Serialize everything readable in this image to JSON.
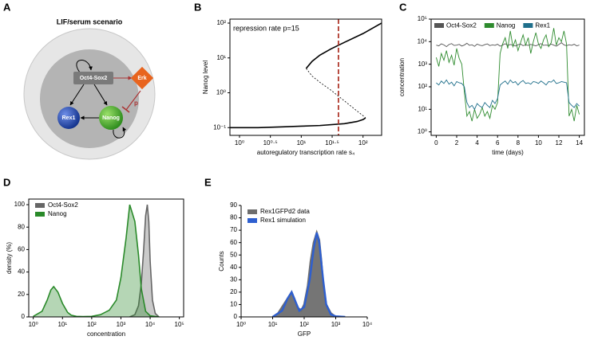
{
  "diagram": {
    "panel": "A",
    "title": "LIF/serum scenario",
    "nodes": [
      "Oct4-Sox2",
      "Erk",
      "Rex1",
      "Nanog"
    ],
    "edge_label": "p"
  },
  "chart_data": [
    {
      "panel": "B",
      "type": "line",
      "annotation": "repression rate p=15",
      "xlabel": "autoregulatory transcription rate s₄",
      "ylabel": "Nanog level",
      "xscale": "log",
      "yscale": "log",
      "xlim": [
        0.7,
        200
      ],
      "ylim": [
        0.06,
        130
      ],
      "frame": true,
      "xticks": [
        {
          "value": 1,
          "label": "10⁰"
        },
        {
          "value": 3.16228,
          "label": "10⁰·⁵"
        },
        {
          "value": 10,
          "label": "10¹"
        },
        {
          "value": 31.6228,
          "label": "10¹·⁵"
        },
        {
          "value": 100,
          "label": "10²"
        }
      ],
      "yticks": [
        {
          "value": 0.1,
          "label": "10⁻¹"
        },
        {
          "value": 1,
          "label": "10⁰"
        },
        {
          "value": 10,
          "label": "10¹"
        },
        {
          "value": 100,
          "label": "10²"
        }
      ],
      "vline": {
        "value": 40,
        "color": "#b03a2e"
      },
      "series": [
        {
          "style": "line",
          "color": "#000000",
          "x": [
            0.7,
            1,
            2,
            5,
            10,
            20,
            50,
            80,
            100,
            110
          ],
          "values": [
            0.1,
            0.1,
            0.1,
            0.105,
            0.11,
            0.115,
            0.13,
            0.15,
            0.17,
            0.19
          ]
        },
        {
          "style": "dashed",
          "color": "#000000",
          "x": [
            12,
            15,
            20,
            30,
            40,
            60,
            80,
            100,
            110
          ],
          "values": [
            5,
            3,
            2,
            1.2,
            0.8,
            0.45,
            0.3,
            0.22,
            0.19
          ]
        },
        {
          "style": "line",
          "color": "#000000",
          "x": [
            12,
            15,
            20,
            30,
            50,
            100,
            200
          ],
          "values": [
            5,
            8,
            12,
            18,
            28,
            50,
            100
          ]
        }
      ]
    },
    {
      "panel": "C",
      "type": "line",
      "xlabel": "time (days)",
      "ylabel": "concentration",
      "yscale": "log",
      "xlim": [
        -0.5,
        14.5
      ],
      "ylim": [
        0.7,
        100000
      ],
      "frame": true,
      "legend": "top",
      "xticks": [
        0,
        2,
        4,
        6,
        8,
        10,
        12,
        14
      ],
      "yticks": [
        {
          "value": 1,
          "label": "10⁰"
        },
        {
          "value": 10,
          "label": "10¹"
        },
        {
          "value": 100,
          "label": "10²"
        },
        {
          "value": 1000,
          "label": "10³"
        },
        {
          "value": 10000,
          "label": "10⁴"
        },
        {
          "value": 100000,
          "label": "10⁵"
        }
      ],
      "x": [
        0,
        0.25,
        0.5,
        0.75,
        1,
        1.25,
        1.5,
        1.75,
        2,
        2.25,
        2.5,
        2.75,
        3,
        3.25,
        3.5,
        3.75,
        4,
        4.25,
        4.5,
        4.75,
        5,
        5.25,
        5.5,
        5.75,
        6,
        6.25,
        6.5,
        6.75,
        7,
        7.25,
        7.5,
        7.75,
        8,
        8.25,
        8.5,
        8.75,
        9,
        9.25,
        9.5,
        9.75,
        10,
        10.25,
        10.5,
        10.75,
        11,
        11.25,
        11.5,
        11.75,
        12,
        12.25,
        12.5,
        12.75,
        13,
        13.25,
        13.5,
        13.75,
        14
      ],
      "series": [
        {
          "name": "Oct4-Sox2",
          "style": "line",
          "color": "#555555",
          "values": [
            7000,
            6500,
            8000,
            7200,
            6000,
            7500,
            8200,
            6800,
            7000,
            7600,
            6400,
            7100,
            8500,
            6900,
            7300,
            6200,
            7800,
            7000,
            6600,
            7400,
            8000,
            6700,
            7200,
            6900,
            7700,
            6300,
            7100,
            8100,
            6800,
            7500,
            7000,
            6400,
            7300,
            7900,
            6600,
            7200,
            6800,
            7600,
            7000,
            6500,
            7400,
            8200,
            6900,
            7100,
            6700,
            7800,
            7000,
            6300,
            7500,
            9000,
            7200,
            6600,
            7300,
            6900,
            7700,
            6500,
            7100
          ]
        },
        {
          "name": "Nanog",
          "style": "line",
          "color": "#2e8b2e",
          "values": [
            2000,
            800,
            3000,
            1500,
            4000,
            1200,
            2500,
            900,
            5000,
            1800,
            1000,
            60,
            5,
            8,
            3,
            10,
            4,
            6,
            12,
            5,
            8,
            4,
            15,
            10,
            20,
            3000,
            8000,
            15000,
            5000,
            30000,
            6000,
            12000,
            4000,
            9000,
            20000,
            7000,
            15000,
            3000,
            10000,
            25000,
            8000,
            5000,
            12000,
            20000,
            6000,
            9000,
            40000,
            7000,
            15000,
            10000,
            30000,
            8000,
            5,
            10,
            3,
            15,
            6
          ]
        },
        {
          "name": "Rex1",
          "style": "line",
          "color": "#1f6f8b",
          "values": [
            150,
            120,
            180,
            140,
            200,
            130,
            160,
            110,
            170,
            150,
            140,
            100,
            20,
            12,
            15,
            10,
            18,
            14,
            12,
            20,
            15,
            12,
            25,
            18,
            30,
            120,
            150,
            180,
            130,
            200,
            150,
            170,
            120,
            160,
            190,
            140,
            150,
            130,
            170,
            160,
            140,
            180,
            150,
            120,
            170,
            160,
            200,
            140,
            150,
            170,
            160,
            150,
            20,
            15,
            12,
            18,
            14
          ]
        }
      ]
    },
    {
      "panel": "D",
      "type": "line",
      "xlabel": "concentration",
      "ylabel": "density (%)",
      "xscale": "log",
      "xlim": [
        0.7,
        140000
      ],
      "ylim": [
        0,
        105
      ],
      "frame": true,
      "legend": "upper left",
      "xticks": [
        {
          "value": 1,
          "label": "10⁰"
        },
        {
          "value": 10,
          "label": "10¹"
        },
        {
          "value": 100,
          "label": "10²"
        },
        {
          "value": 1000,
          "label": "10³"
        },
        {
          "value": 10000,
          "label": "10⁴"
        },
        {
          "value": 100000,
          "label": "10⁵"
        }
      ],
      "yticks": [
        0,
        20,
        40,
        60,
        80,
        100
      ],
      "series": [
        {
          "name": "Oct4-Sox2",
          "style": "area",
          "color": "#666666",
          "x": [
            2000,
            3000,
            4000,
            5000,
            6000,
            7000,
            8000,
            9000,
            10000,
            12000,
            15000,
            20000
          ],
          "values": [
            0,
            2,
            10,
            30,
            60,
            90,
            100,
            85,
            50,
            15,
            3,
            0
          ]
        },
        {
          "name": "Nanog",
          "style": "area",
          "color": "#2a8a2a",
          "x": [
            1,
            2,
            3,
            4,
            5,
            7,
            10,
            15,
            20,
            30,
            50,
            100,
            200,
            400,
            700,
            1000,
            1500,
            2000,
            3000,
            4000,
            5000,
            7000,
            10000,
            20000
          ],
          "values": [
            0.5,
            5,
            15,
            24,
            27,
            22,
            12,
            4,
            1.5,
            0.5,
            0.3,
            0.5,
            2,
            6,
            15,
            35,
            70,
            100,
            85,
            55,
            25,
            5,
            1,
            0
          ]
        }
      ]
    },
    {
      "panel": "E",
      "type": "line",
      "xlabel": "GFP",
      "ylabel": "Counts",
      "xscale": "log",
      "xlim": [
        1,
        10000
      ],
      "ylim": [
        0,
        90
      ],
      "frame": false,
      "legend": "upper left",
      "xticks": [
        {
          "value": 1,
          "label": "10⁰"
        },
        {
          "value": 10,
          "label": "10¹"
        },
        {
          "value": 100,
          "label": "10²"
        },
        {
          "value": 1000,
          "label": "10³"
        },
        {
          "value": 10000,
          "label": "10⁴"
        }
      ],
      "yticks": [
        0,
        10,
        20,
        30,
        40,
        50,
        60,
        70,
        80,
        90
      ],
      "series": [
        {
          "name": "Rex1GFPd2 data",
          "style": "area",
          "color": "#6e6e6e",
          "x": [
            10,
            15,
            20,
            30,
            40,
            50,
            60,
            80,
            100,
            130,
            160,
            200,
            250,
            300,
            350,
            400,
            500,
            700,
            1000
          ],
          "values": [
            0,
            3,
            8,
            15,
            20,
            14,
            8,
            5,
            10,
            25,
            45,
            60,
            68,
            62,
            45,
            25,
            10,
            3,
            0
          ]
        },
        {
          "name": "Rex1 simulation",
          "style": "line",
          "color": "#2e5fd0",
          "x": [
            10,
            20,
            30,
            40,
            50,
            70,
            100,
            150,
            200,
            250,
            300,
            400,
            500,
            700,
            1000,
            2000
          ],
          "values": [
            0,
            5,
            15,
            20,
            14,
            5,
            8,
            30,
            55,
            68,
            60,
            30,
            10,
            2,
            0.5,
            0
          ]
        }
      ]
    }
  ]
}
